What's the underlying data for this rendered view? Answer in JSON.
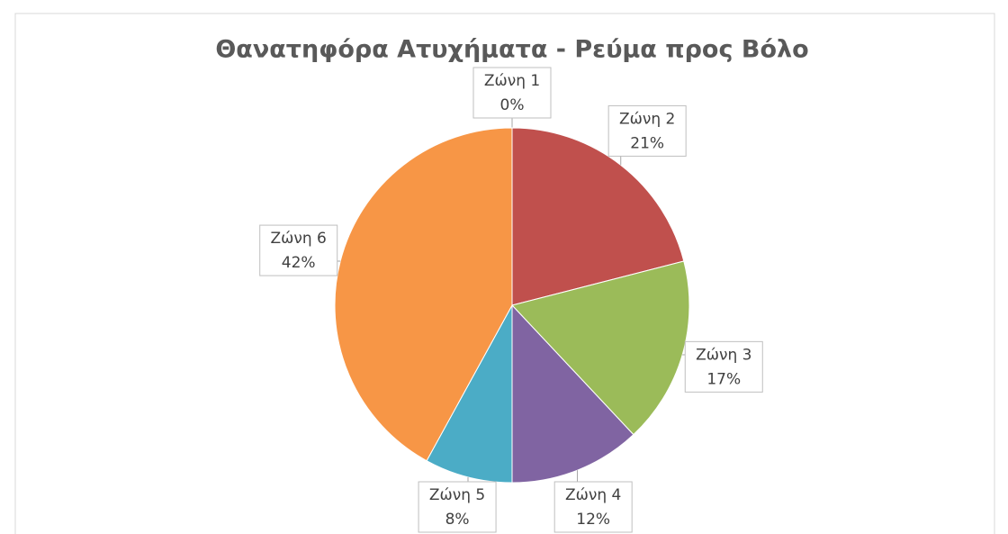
{
  "chart_data": {
    "type": "pie",
    "title": "Θανατηφόρα Ατυχήματα - Ρεύμα προς Βόλο",
    "categories": [
      "Ζώνη 1",
      "Ζώνη 2",
      "Ζώνη 3",
      "Ζώνη 4",
      "Ζώνη 5",
      "Ζώνη 6"
    ],
    "values": [
      0,
      21,
      17,
      12,
      8,
      42
    ],
    "value_labels": [
      "0%",
      "21%",
      "17%",
      "12%",
      "8%",
      "42%"
    ],
    "colors": [
      "#4f81bd",
      "#c0504d",
      "#9bbb59",
      "#8064a2",
      "#4bacc6",
      "#f79646"
    ]
  }
}
